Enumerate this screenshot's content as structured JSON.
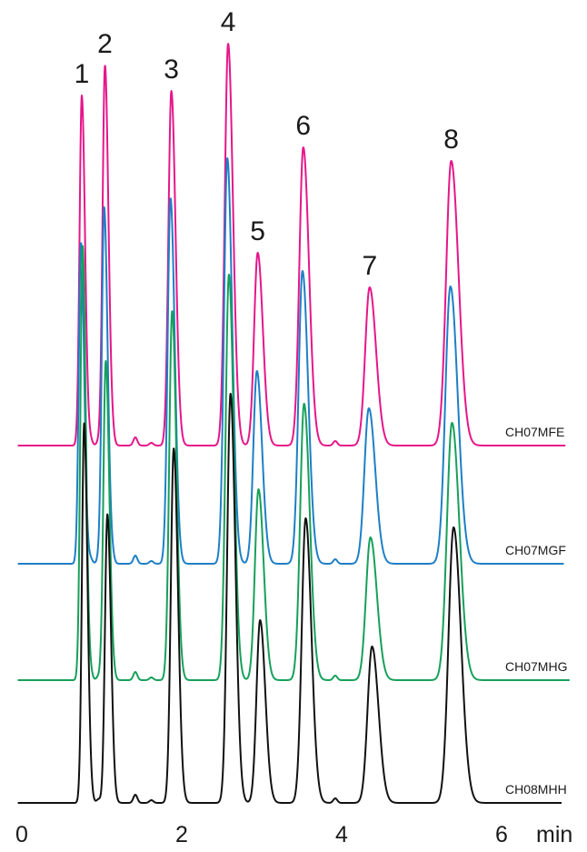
{
  "chart_data": {
    "type": "line",
    "xlabel": "min",
    "xlim": [
      0,
      6.8
    ],
    "x_ticks": [
      0,
      2,
      4,
      6
    ],
    "peaks": [
      {
        "label": "1",
        "rt": 0.75
      },
      {
        "label": "2",
        "rt": 1.04
      },
      {
        "label": "3",
        "rt": 1.87
      },
      {
        "label": "4",
        "rt": 2.58
      },
      {
        "label": "5",
        "rt": 2.95
      },
      {
        "label": "6",
        "rt": 3.52
      },
      {
        "label": "7",
        "rt": 4.35
      },
      {
        "label": "8",
        "rt": 5.37
      }
    ],
    "series": [
      {
        "name": "CH07MFE",
        "color": "#e6168a",
        "rt_shift": 0.0,
        "x_end": 6.8,
        "peak_heights": [
          385,
          418,
          390,
          442,
          212,
          328,
          174,
          313
        ]
      },
      {
        "name": "CH07MGF",
        "color": "#1e7fc6",
        "rt_shift": -0.01,
        "x_end": 6.78,
        "peak_heights": [
          353,
          392,
          402,
          446,
          212,
          322,
          171,
          305
        ]
      },
      {
        "name": "CH07MHG",
        "color": "#17a05a",
        "rt_shift": 0.01,
        "x_end": 6.85,
        "peak_heights": [
          478,
          351,
          406,
          446,
          210,
          304,
          157,
          283
        ]
      },
      {
        "name": "CH08MHH",
        "color": "#111111",
        "rt_shift": 0.03,
        "x_end": 6.75,
        "peak_heights": [
          418,
          317,
          390,
          450,
          201,
          313,
          172,
          303
        ]
      }
    ]
  }
}
